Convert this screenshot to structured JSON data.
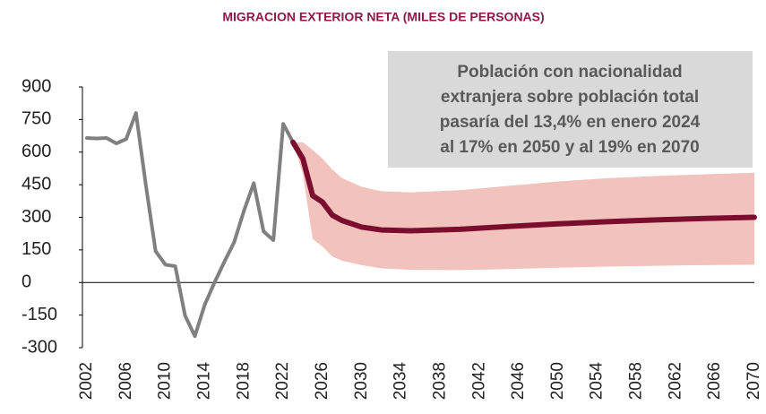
{
  "chart_data": {
    "type": "line",
    "title": "MIGRACION EXTERIOR NETA (MILES DE PERSONAS)",
    "annotation": [
      "Población con nacionalidad",
      "extranjera sobre población total",
      "pasaría del 13,4% en enero 2024",
      "al 17% en 2050 y al 19% en 2070"
    ],
    "xlim": [
      2002,
      2070
    ],
    "xticks": [
      2002,
      2006,
      2010,
      2014,
      2018,
      2022,
      2026,
      2030,
      2034,
      2038,
      2042,
      2046,
      2050,
      2054,
      2058,
      2062,
      2066,
      2070
    ],
    "ylim": [
      -300,
      900
    ],
    "yticks": [
      -300,
      -150,
      0,
      150,
      300,
      450,
      600,
      750,
      900
    ],
    "band": {
      "color": "#f2c2bd",
      "x": [
        2023,
        2024,
        2025,
        2026,
        2027,
        2028,
        2030,
        2032,
        2035,
        2040,
        2045,
        2050,
        2055,
        2060,
        2065,
        2070
      ],
      "upper": [
        645,
        645,
        610,
        570,
        520,
        480,
        440,
        420,
        415,
        425,
        445,
        465,
        480,
        490,
        498,
        505
      ],
      "lower": [
        645,
        500,
        200,
        165,
        120,
        100,
        80,
        65,
        58,
        57,
        62,
        68,
        73,
        77,
        80,
        82
      ]
    },
    "series": [
      {
        "color": "#808080",
        "x": [
          2002,
          2003,
          2004,
          2005,
          2006,
          2007,
          2008,
          2009,
          2010,
          2011,
          2012,
          2013,
          2014,
          2015,
          2016,
          2017,
          2018,
          2019,
          2020,
          2021,
          2022,
          2023
        ],
        "values": [
          665,
          663,
          665,
          640,
          660,
          780,
          450,
          144,
          82,
          75,
          -152,
          -247,
          -103,
          0,
          95,
          185,
          330,
          457,
          235,
          195,
          730,
          645
        ]
      },
      {
        "color": "#7b0d2e",
        "x": [
          2023,
          2024,
          2025,
          2026,
          2027,
          2028,
          2030,
          2032,
          2035,
          2040,
          2045,
          2050,
          2055,
          2060,
          2065,
          2070
        ],
        "values": [
          645,
          570,
          400,
          370,
          310,
          285,
          255,
          242,
          238,
          245,
          258,
          270,
          280,
          288,
          295,
          300
        ]
      }
    ]
  }
}
